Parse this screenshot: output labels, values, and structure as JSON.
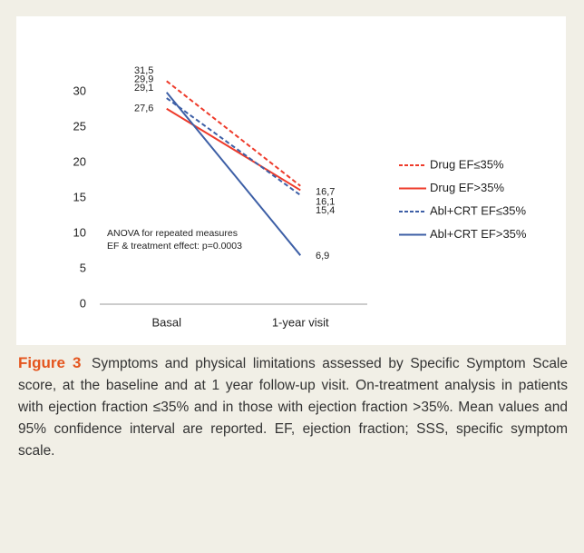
{
  "chart_data": {
    "type": "line",
    "categories": [
      "Basal",
      "1-year visit"
    ],
    "series": [
      {
        "name": "Drug EF≤35%",
        "color": "#ee3b2b",
        "dashed": true,
        "values": [
          31.5,
          16.7
        ],
        "value_labels": [
          "31,5",
          "16,7"
        ]
      },
      {
        "name": "Drug EF>35%",
        "color": "#ee3b2b",
        "dashed": false,
        "values": [
          27.6,
          16.1
        ],
        "value_labels": [
          "27,6",
          "16,1"
        ]
      },
      {
        "name": "Abl+CRT EF≤35%",
        "color": "#3d5fa6",
        "dashed": true,
        "values": [
          29.1,
          15.4
        ],
        "value_labels": [
          "29,1",
          "15,4"
        ]
      },
      {
        "name": "Abl+CRT EF>35%",
        "color": "#3d5fa6",
        "dashed": false,
        "values": [
          29.9,
          6.9
        ],
        "value_labels": [
          "29,9",
          "6,9"
        ]
      }
    ],
    "ylim": [
      0,
      35
    ],
    "yticks": [
      0,
      5,
      10,
      15,
      20,
      25,
      30
    ],
    "grid": false,
    "annotation": [
      "ANOVA for repeated measures",
      "EF & treatment effect: p=0.0003"
    ],
    "legend": "right"
  },
  "caption": {
    "label": "Figure 3",
    "text": "Symptoms and physical limitations assessed by Specific Symptom Scale score, at the baseline and at 1 year follow-up visit. On-treatment analysis in patients with ejection fraction ≤35% and in those with ejection fraction >35%. Mean values and 95% confidence interval are reported. EF, ejection fraction; SSS, specific symptom scale."
  }
}
